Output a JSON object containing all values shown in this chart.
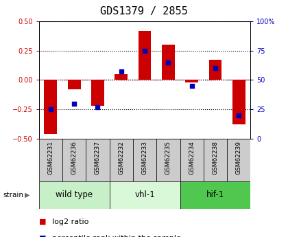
{
  "title": "GDS1379 / 2855",
  "samples": [
    "GSM62231",
    "GSM62236",
    "GSM62237",
    "GSM62232",
    "GSM62233",
    "GSM62235",
    "GSM62234",
    "GSM62238",
    "GSM62239"
  ],
  "log2_ratio": [
    -0.46,
    -0.08,
    -0.22,
    0.05,
    0.42,
    0.3,
    -0.02,
    0.17,
    -0.38
  ],
  "percentile_rank": [
    25,
    30,
    27,
    57,
    75,
    65,
    45,
    60,
    20
  ],
  "groups": [
    {
      "label": "wild type",
      "start": 0,
      "end": 3,
      "color": "#c8f0c8"
    },
    {
      "label": "vhl-1",
      "start": 3,
      "end": 6,
      "color": "#d8f8d8"
    },
    {
      "label": "hif-1",
      "start": 6,
      "end": 9,
      "color": "#50c850"
    }
  ],
  "ylim_left": [
    -0.5,
    0.5
  ],
  "ylim_right": [
    0,
    100
  ],
  "yticks_left": [
    -0.5,
    -0.25,
    0,
    0.25,
    0.5
  ],
  "yticks_right": [
    0,
    25,
    50,
    75,
    100
  ],
  "red_color": "#cc0000",
  "blue_color": "#0000bb",
  "plot_bg": "#ffffff",
  "tick_fontsize": 7,
  "legend_fontsize": 8,
  "group_fontsize": 8.5,
  "sample_fontsize": 6.5,
  "title_fontsize": 11
}
